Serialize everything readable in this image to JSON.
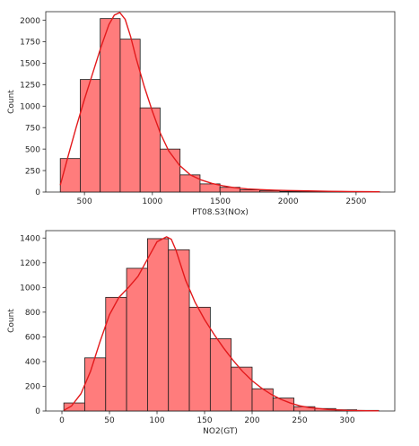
{
  "chart_data": [
    {
      "type": "bar",
      "variant": "histogram-with-kde",
      "xlabel": "PT08.S3(NOx)",
      "ylabel": "Count",
      "xlim": [
        215,
        2785
      ],
      "ylim": [
        0,
        2100
      ],
      "xticks": [
        500,
        1000,
        1500,
        2000,
        2500
      ],
      "yticks": [
        0,
        250,
        500,
        750,
        1000,
        1250,
        1500,
        1750,
        2000
      ],
      "bin_edges": [
        322,
        469,
        616,
        763,
        910,
        1057,
        1204,
        1351,
        1498,
        1645,
        1792,
        1939,
        2086,
        2233,
        2380,
        2527,
        2674
      ],
      "values": [
        390,
        1310,
        2020,
        1780,
        980,
        500,
        200,
        95,
        55,
        25,
        15,
        8,
        6,
        4,
        3,
        2
      ],
      "kde": {
        "x": [
          322,
          380,
          440,
          500,
          560,
          620,
          680,
          720,
          760,
          800,
          840,
          880,
          940,
          1000,
          1060,
          1120,
          1200,
          1280,
          1360,
          1440,
          1520,
          1600,
          1700,
          1800,
          1900,
          2000,
          2150,
          2300,
          2450,
          2600,
          2674
        ],
        "y": [
          80,
          420,
          760,
          1080,
          1380,
          1680,
          1950,
          2060,
          2090,
          2010,
          1810,
          1560,
          1230,
          940,
          680,
          480,
          310,
          200,
          140,
          100,
          72,
          52,
          36,
          28,
          22,
          18,
          13,
          9,
          6,
          4,
          3
        ]
      },
      "bar_color": "#ff7c7c",
      "line_color": "#e31a1c"
    },
    {
      "type": "bar",
      "variant": "histogram-with-kde",
      "xlabel": "NO2(GT)",
      "ylabel": "Count",
      "xlim": [
        -17,
        350
      ],
      "ylim": [
        0,
        1460
      ],
      "xticks": [
        0,
        50,
        100,
        150,
        200,
        250,
        300
      ],
      "yticks": [
        0,
        200,
        400,
        600,
        800,
        1000,
        1200,
        1400
      ],
      "bin_edges": [
        2,
        24,
        46,
        68,
        90,
        112,
        134,
        156,
        178,
        200,
        222,
        244,
        266,
        288,
        310,
        333
      ],
      "values": [
        65,
        430,
        920,
        1155,
        1395,
        1305,
        840,
        585,
        355,
        180,
        105,
        35,
        20,
        10,
        5
      ],
      "kde": {
        "x": [
          2,
          10,
          20,
          30,
          40,
          50,
          60,
          70,
          80,
          90,
          100,
          110,
          115,
          120,
          130,
          140,
          150,
          160,
          170,
          180,
          190,
          200,
          210,
          220,
          230,
          240,
          250,
          260,
          280,
          300,
          320,
          333
        ],
        "y": [
          5,
          40,
          140,
          320,
          560,
          780,
          920,
          1000,
          1090,
          1230,
          1370,
          1410,
          1390,
          1300,
          1060,
          880,
          740,
          620,
          510,
          410,
          320,
          245,
          185,
          135,
          95,
          65,
          42,
          28,
          12,
          5,
          2,
          1
        ]
      },
      "bar_color": "#ff7c7c",
      "line_color": "#e31a1c"
    }
  ]
}
